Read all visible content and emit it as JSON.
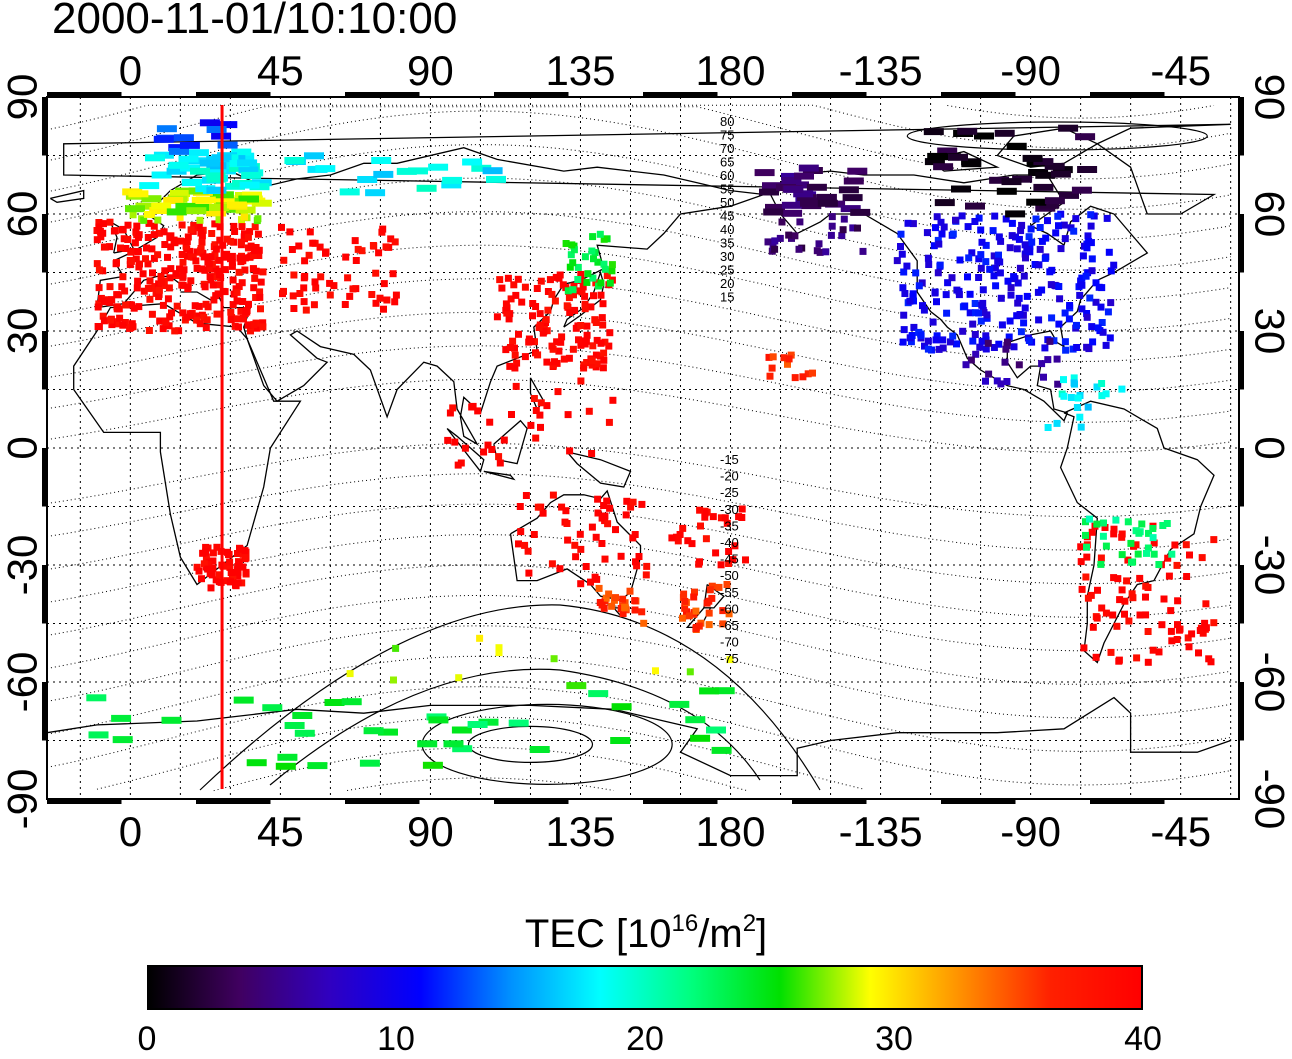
{
  "title": "2000-11-01/10:10:00",
  "colors": {
    "meridian": "#ff0000",
    "colormap": [
      "#000000",
      "#400060",
      "#3000c0",
      "#0000ff",
      "#0090ff",
      "#00ffff",
      "#00ff80",
      "#00e000",
      "#ffff00",
      "#ff9000",
      "#ff2000",
      "#ff0000"
    ]
  },
  "map": {
    "projection": "cylindrical",
    "lon_ticks_top": [
      "0",
      "45",
      "90",
      "135",
      "180",
      "-135",
      "-90",
      "-45"
    ],
    "lon_ticks_bottom": [
      "0",
      "45",
      "90",
      "135",
      "180",
      "-135",
      "-90",
      "-45"
    ],
    "lat_ticks_left": [
      "90",
      "60",
      "30",
      "0",
      "-30",
      "-60",
      "-90"
    ],
    "lat_ticks_right": [
      "90",
      "60",
      "30",
      "0",
      "-30",
      "-60",
      "-90"
    ],
    "marked_meridian_lon": 27.5,
    "magnetic_latitude_labels": [
      "80",
      "75",
      "70",
      "65",
      "60",
      "55",
      "50",
      "45",
      "40",
      "35",
      "30",
      "25",
      "20",
      "15",
      "-15",
      "-20",
      "-25",
      "-30",
      "-35",
      "-40",
      "-45",
      "-50",
      "-55",
      "-60",
      "-65",
      "-70",
      "-75"
    ]
  },
  "tec_regions": [
    {
      "lon": [
        -10,
        40
      ],
      "lat": [
        30,
        58
      ],
      "tec": 40,
      "n": 320
    },
    {
      "lon": [
        0,
        40
      ],
      "lat": [
        58,
        66
      ],
      "tec": 28,
      "n": 60
    },
    {
      "lon": [
        5,
        40
      ],
      "lat": [
        66,
        76
      ],
      "tec": 18,
      "n": 45
    },
    {
      "lon": [
        10,
        30
      ],
      "lat": [
        76,
        84
      ],
      "tec": 12,
      "n": 12
    },
    {
      "lon": [
        45,
        80
      ],
      "lat": [
        35,
        57
      ],
      "tec": 40,
      "n": 60
    },
    {
      "lon": [
        20,
        35
      ],
      "lat": [
        -36,
        -25
      ],
      "tec": 40,
      "n": 60
    },
    {
      "lon": [
        110,
        145
      ],
      "lat": [
        20,
        45
      ],
      "tec": 40,
      "n": 130
    },
    {
      "lon": [
        130,
        145
      ],
      "lat": [
        40,
        55
      ],
      "tec": 24,
      "n": 30
    },
    {
      "lon": [
        95,
        145
      ],
      "lat": [
        -5,
        20
      ],
      "tec": 40,
      "n": 35
    },
    {
      "lon": [
        115,
        155
      ],
      "lat": [
        -35,
        -12
      ],
      "tec": 40,
      "n": 55
    },
    {
      "lon": [
        140,
        155
      ],
      "lat": [
        -45,
        -35
      ],
      "tec": 36,
      "n": 25
    },
    {
      "lon": [
        165,
        180
      ],
      "lat": [
        -47,
        -35
      ],
      "tec": 36,
      "n": 30
    },
    {
      "lon": [
        160,
        185
      ],
      "lat": [
        -30,
        -15
      ],
      "tec": 40,
      "n": 30
    },
    {
      "lon": [
        -170,
        -140
      ],
      "lat": [
        50,
        72
      ],
      "tec": 4,
      "n": 60
    },
    {
      "lon": [
        -130,
        -65
      ],
      "lat": [
        25,
        60
      ],
      "tec": 10,
      "n": 260
    },
    {
      "lon": [
        -120,
        -70
      ],
      "lat": [
        60,
        82
      ],
      "tec": 1,
      "n": 40
    },
    {
      "lon": [
        -110,
        -80
      ],
      "lat": [
        15,
        28
      ],
      "tec": 6,
      "n": 20
    },
    {
      "lon": [
        -85,
        -60
      ],
      "lat": [
        5,
        18
      ],
      "tec": 18,
      "n": 20
    },
    {
      "lon": [
        -75,
        -35
      ],
      "lat": [
        -55,
        -20
      ],
      "tec": 40,
      "n": 90
    },
    {
      "lon": [
        -75,
        -45
      ],
      "lat": [
        -30,
        -18
      ],
      "tec": 22,
      "n": 30
    },
    {
      "lon": [
        -170,
        -155
      ],
      "lat": [
        18,
        24
      ],
      "tec": 36,
      "n": 12
    },
    {
      "lon": [
        -20,
        180
      ],
      "lat": [
        -82,
        -62
      ],
      "tec": 24,
      "n": 40
    },
    {
      "lon": [
        60,
        180
      ],
      "lat": [
        -62,
        -45
      ],
      "tec": 28,
      "n": 12
    },
    {
      "lon": [
        40,
        110
      ],
      "lat": [
        65,
        75
      ],
      "tec": 18,
      "n": 20
    }
  ],
  "colorbar": {
    "label_prefix": "TEC  [10",
    "label_exp1": "16",
    "label_mid": "/m",
    "label_exp2": "2",
    "label_suffix": "]",
    "min": 0,
    "max": 40,
    "ticks": [
      "0",
      "10",
      "20",
      "30",
      "40"
    ]
  }
}
